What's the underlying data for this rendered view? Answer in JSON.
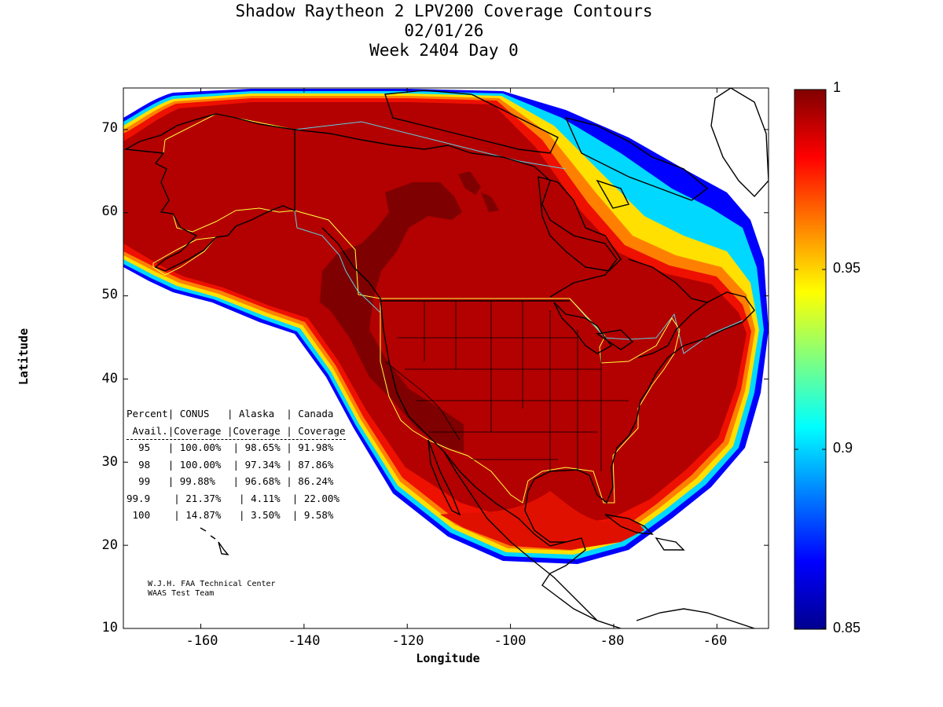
{
  "title": {
    "line1": "Shadow Raytheon 2 LPV200 Coverage Contours",
    "line2": "02/01/26",
    "line3": "Week 2404 Day 0"
  },
  "axes": {
    "xlabel": "Longitude",
    "ylabel": "Latitude",
    "x_ticks": [
      "-160",
      "-140",
      "-120",
      "-100",
      "-80",
      "-60"
    ],
    "y_ticks": [
      "70",
      "60",
      "50",
      "40",
      "30",
      "20",
      "10"
    ],
    "xlim": [
      -175,
      -50
    ],
    "ylim": [
      10,
      75
    ]
  },
  "colorbar": {
    "labels": [
      "1",
      "0.95",
      "0.9",
      "0.85"
    ],
    "range": [
      0.85,
      1.0
    ],
    "colormap": "jet"
  },
  "stats_table": {
    "header1": [
      "Percent",
      "CONUS",
      "Alaska",
      "Canada"
    ],
    "header2": [
      "Avail.",
      "Coverage",
      "Coverage",
      "Coverage"
    ],
    "rows": [
      [
        "95",
        "100.00%",
        "98.65%",
        "91.98%"
      ],
      [
        "98",
        "100.00%",
        "97.34%",
        "87.86%"
      ],
      [
        "99",
        "99.88%",
        "96.68%",
        "86.24%"
      ],
      [
        "99.9",
        "21.37%",
        "4.11%",
        "22.00%"
      ],
      [
        "100",
        "14.87%",
        "3.50%",
        "9.58%"
      ]
    ]
  },
  "credit": {
    "line1": "W.J.H. FAA Technical Center",
    "line2": "WAAS Test Team"
  },
  "colors": {
    "full": "#a00000",
    "peak": "#7f0000",
    "background": "#ffffff"
  }
}
